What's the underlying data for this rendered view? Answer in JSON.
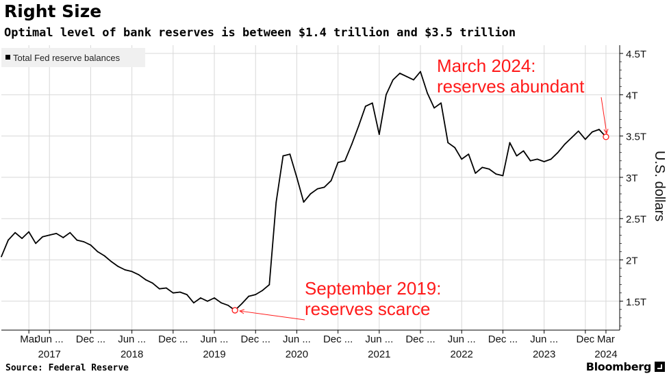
{
  "title": "Right Size",
  "subtitle": "Optimal level of bank reserves is between $1.4 trillion and $3.5 trillion",
  "source": "Source: Federal Reserve",
  "brand": "Bloomberg",
  "colors": {
    "line": "#000000",
    "annotation": "#ff1a1a",
    "grid": "#d8d8d8",
    "legend_bg": "#f0f0f0"
  },
  "chart_data": {
    "type": "line",
    "ylabel": "U.S. dollars",
    "y_ticks": [
      "4.5T",
      "4T",
      "3.5T",
      "3T",
      "2.5T",
      "2T",
      "1.5T"
    ],
    "y_tick_values": [
      4.5,
      4.0,
      3.5,
      3.0,
      2.5,
      2.0,
      1.5
    ],
    "ylim": [
      1.15,
      4.55
    ],
    "y_unit": "trillion USD",
    "x_tick_labels": [
      "Mar",
      "Jun ...",
      "Dec ...",
      "Jun ...",
      "Dec ...",
      "Jun ...",
      "Dec ...",
      "Jun ...",
      "Dec ...",
      "Jun ...",
      "Dec ...",
      "Jun ...",
      "Dec ...",
      "Jun ...",
      "Dec",
      "Mar"
    ],
    "x_tick_dates": [
      "2017-03",
      "2017-06",
      "2017-12",
      "2018-06",
      "2018-12",
      "2019-06",
      "2019-12",
      "2020-06",
      "2020-12",
      "2021-06",
      "2021-12",
      "2022-06",
      "2022-12",
      "2023-06",
      "2023-12",
      "2024-03"
    ],
    "x_year_labels": [
      "2017",
      "2018",
      "2019",
      "2020",
      "2021",
      "2022",
      "2023",
      "2024"
    ],
    "x_year_dates": [
      "2017-06",
      "2018-06",
      "2019-06",
      "2020-06",
      "2021-06",
      "2022-06",
      "2023-06",
      "2024-03"
    ],
    "xlim": [
      "2016-11",
      "2024-05"
    ],
    "grid": true,
    "legend_position": "top-left",
    "series": [
      {
        "name": "Total Fed reserve balances",
        "x": [
          "2016-11",
          "2016-12",
          "2017-01",
          "2017-02",
          "2017-03",
          "2017-04",
          "2017-05",
          "2017-06",
          "2017-07",
          "2017-08",
          "2017-09",
          "2017-10",
          "2017-11",
          "2017-12",
          "2018-01",
          "2018-02",
          "2018-03",
          "2018-04",
          "2018-05",
          "2018-06",
          "2018-07",
          "2018-08",
          "2018-09",
          "2018-10",
          "2018-11",
          "2018-12",
          "2019-01",
          "2019-02",
          "2019-03",
          "2019-04",
          "2019-05",
          "2019-06",
          "2019-07",
          "2019-08",
          "2019-09",
          "2019-10",
          "2019-11",
          "2019-12",
          "2020-01",
          "2020-02",
          "2020-03",
          "2020-04",
          "2020-05",
          "2020-06",
          "2020-07",
          "2020-08",
          "2020-09",
          "2020-10",
          "2020-11",
          "2020-12",
          "2021-01",
          "2021-02",
          "2021-03",
          "2021-04",
          "2021-05",
          "2021-06",
          "2021-07",
          "2021-08",
          "2021-09",
          "2021-10",
          "2021-11",
          "2021-12",
          "2022-01",
          "2022-02",
          "2022-03",
          "2022-04",
          "2022-05",
          "2022-06",
          "2022-07",
          "2022-08",
          "2022-09",
          "2022-10",
          "2022-11",
          "2022-12",
          "2023-01",
          "2023-02",
          "2023-03",
          "2023-04",
          "2023-05",
          "2023-06",
          "2023-07",
          "2023-08",
          "2023-09",
          "2023-10",
          "2023-11",
          "2023-12",
          "2024-01",
          "2024-02",
          "2024-03"
        ],
        "values": [
          2.04,
          2.24,
          2.33,
          2.26,
          2.34,
          2.2,
          2.28,
          2.3,
          2.32,
          2.27,
          2.33,
          2.24,
          2.22,
          2.18,
          2.1,
          2.05,
          1.98,
          1.92,
          1.88,
          1.86,
          1.82,
          1.76,
          1.72,
          1.65,
          1.66,
          1.6,
          1.61,
          1.58,
          1.48,
          1.54,
          1.5,
          1.54,
          1.48,
          1.45,
          1.39,
          1.47,
          1.56,
          1.58,
          1.63,
          1.7,
          2.7,
          3.26,
          3.28,
          3.0,
          2.7,
          2.8,
          2.86,
          2.88,
          2.96,
          3.18,
          3.2,
          3.4,
          3.62,
          3.86,
          3.9,
          3.52,
          4.0,
          4.18,
          4.26,
          4.22,
          4.18,
          4.28,
          4.02,
          3.84,
          3.9,
          3.42,
          3.36,
          3.22,
          3.28,
          3.05,
          3.12,
          3.1,
          3.04,
          3.02,
          3.42,
          3.26,
          3.32,
          3.2,
          3.22,
          3.19,
          3.22,
          3.3,
          3.4,
          3.48,
          3.56,
          3.46,
          3.55,
          3.58,
          3.49
        ]
      }
    ],
    "annotations": [
      {
        "lines": [
          "September 2019:",
          "reserves scarce"
        ],
        "x": "2019-09",
        "y": 1.39
      },
      {
        "lines": [
          "March 2024:",
          "reserves abundant"
        ],
        "x": "2024-03",
        "y": 3.49
      }
    ]
  }
}
